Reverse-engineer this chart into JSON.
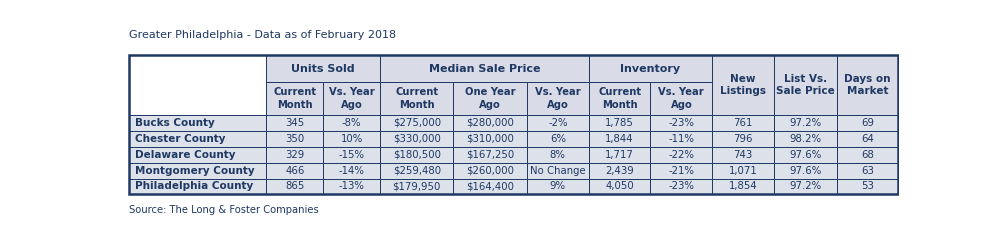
{
  "title": "Greater Philadelphia - Data as of February 2018",
  "source": "Source: The Long & Foster Companies",
  "header_bg_color": "#d9dce6",
  "county_header_bg": "#ffffff",
  "row_bg_color": "#dde1ea",
  "border_color": "#1f3864",
  "text_color": "#1f3864",
  "counties": [
    "Bucks County",
    "Chester County",
    "Delaware County",
    "Montgomery County",
    "Philadelphia County"
  ],
  "data": [
    [
      "345",
      "-8%",
      "$275,000",
      "$280,000",
      "-2%",
      "1,785",
      "-23%",
      "761",
      "97.2%",
      "69"
    ],
    [
      "350",
      "10%",
      "$330,000",
      "$310,000",
      "6%",
      "1,844",
      "-11%",
      "796",
      "98.2%",
      "64"
    ],
    [
      "329",
      "-15%",
      "$180,500",
      "$167,250",
      "8%",
      "1,717",
      "-22%",
      "743",
      "97.6%",
      "68"
    ],
    [
      "466",
      "-14%",
      "$259,480",
      "$260,000",
      "No Change",
      "2,439",
      "-21%",
      "1,071",
      "97.6%",
      "63"
    ],
    [
      "865",
      "-13%",
      "$179,950",
      "$164,400",
      "9%",
      "4,050",
      "-23%",
      "1,854",
      "97.2%",
      "53"
    ]
  ],
  "col_widths_rel": [
    1.65,
    0.68,
    0.68,
    0.88,
    0.88,
    0.74,
    0.74,
    0.74,
    0.74,
    0.76,
    0.72
  ],
  "group_labels": [
    "Units Sold",
    "Median Sale Price",
    "Inventory",
    "New\nListings",
    "List Vs.\nSale Price",
    "Days on\nMarket"
  ],
  "group_spans": [
    2,
    3,
    2,
    1,
    1,
    1
  ],
  "group_start_cols": [
    1,
    3,
    6,
    8,
    9,
    10
  ],
  "sub_headers": [
    "Current\nMonth",
    "Vs. Year\nAgo",
    "Current\nMonth",
    "One Year\nAgo",
    "Vs. Year\nAgo",
    "Current\nMonth",
    "Vs. Year\nAgo"
  ],
  "sub_header_cols": [
    1,
    2,
    3,
    4,
    5,
    6,
    7
  ]
}
